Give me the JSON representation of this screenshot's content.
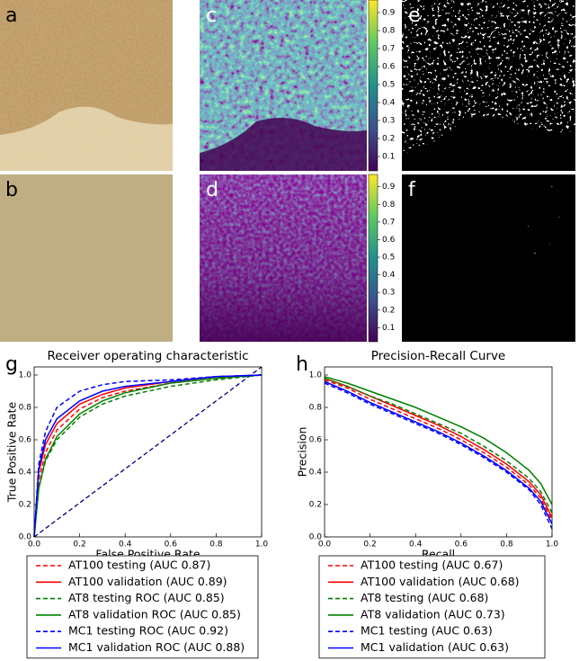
{
  "panel_labels": [
    "a",
    "b",
    "c",
    "d",
    "e",
    "f"
  ],
  "colorbars": [
    {
      "lim": [
        0.02,
        0.97
      ],
      "ticks": [
        0.1,
        0.2,
        0.3,
        0.4,
        0.5,
        0.6,
        0.7,
        0.8,
        0.9
      ]
    },
    {
      "lim": [
        0.02,
        0.97
      ],
      "ticks": [
        0.1,
        0.2,
        0.3,
        0.4,
        0.5,
        0.6,
        0.7,
        0.8,
        0.9
      ]
    }
  ],
  "chart_data": [
    {
      "type": "line",
      "panel_label": "g",
      "title": "Receiver operating characteristic",
      "xlabel": "False Positive Rate",
      "ylabel": "True Positive Rate",
      "xlim": [
        0,
        1
      ],
      "ylim": [
        0,
        1.05
      ],
      "xticks": [
        {
          "value": 0,
          "label": "0.0"
        },
        0.2,
        0.4,
        0.6,
        0.8,
        {
          "value": 1,
          "label": "1.0"
        }
      ],
      "yticks": [
        {
          "value": 0,
          "label": "0.0"
        },
        0.2,
        0.4,
        0.6,
        0.8,
        {
          "value": 1,
          "label": "1.0"
        }
      ],
      "x": [
        0,
        0.02,
        0.05,
        0.1,
        0.2,
        0.3,
        0.4,
        0.6,
        0.8,
        1
      ],
      "series": [
        {
          "name": "AT100 testing (AUC 0.87)",
          "color": "#ff0000",
          "dash": true,
          "values": [
            0,
            0.35,
            0.52,
            0.66,
            0.79,
            0.86,
            0.9,
            0.95,
            0.98,
            1
          ]
        },
        {
          "name": "AT100 validation (AUC 0.89)",
          "color": "#ff0000",
          "dash": false,
          "values": [
            0,
            0.4,
            0.57,
            0.7,
            0.82,
            0.88,
            0.92,
            0.96,
            0.99,
            1
          ]
        },
        {
          "name": "AT8 testing ROC (AUC 0.85)",
          "color": "#008000",
          "dash": true,
          "values": [
            0,
            0.3,
            0.47,
            0.6,
            0.74,
            0.82,
            0.87,
            0.93,
            0.97,
            1
          ]
        },
        {
          "name": "AT8 validation ROC (AUC 0.85)",
          "color": "#008000",
          "dash": false,
          "values": [
            0,
            0.3,
            0.48,
            0.62,
            0.76,
            0.84,
            0.89,
            0.95,
            0.98,
            1
          ]
        },
        {
          "name": "MC1 testing ROC (AUC 0.92)",
          "color": "#0000ff",
          "dash": true,
          "values": [
            0,
            0.45,
            0.65,
            0.8,
            0.9,
            0.94,
            0.96,
            0.97,
            0.99,
            1
          ]
        },
        {
          "name": "MC1 validation ROC (AUC 0.88)",
          "color": "#0000ff",
          "dash": false,
          "values": [
            0,
            0.42,
            0.6,
            0.73,
            0.84,
            0.9,
            0.93,
            0.96,
            0.99,
            1
          ]
        }
      ]
    },
    {
      "type": "line",
      "panel_label": "h",
      "title": "Precision-Recall Curve",
      "xlabel": "Recall",
      "ylabel": "Precision",
      "xlim": [
        0,
        1
      ],
      "ylim": [
        0,
        1.05
      ],
      "xticks": [
        {
          "value": 0,
          "label": "0.0"
        },
        0.2,
        0.4,
        0.6,
        0.8,
        {
          "value": 1,
          "label": "1.0"
        }
      ],
      "yticks": [
        {
          "value": 0,
          "label": "0.0"
        },
        0.2,
        0.4,
        0.6,
        0.8,
        {
          "value": 1,
          "label": "1.0"
        }
      ],
      "x": [
        0,
        0.1,
        0.2,
        0.3,
        0.4,
        0.5,
        0.6,
        0.7,
        0.8,
        0.9,
        0.95,
        1
      ],
      "series": [
        {
          "name": "AT100 testing (AUC 0.67)",
          "color": "#ff0000",
          "dash": true,
          "values": [
            0.97,
            0.92,
            0.85,
            0.79,
            0.73,
            0.67,
            0.6,
            0.52,
            0.43,
            0.32,
            0.24,
            0.1
          ]
        },
        {
          "name": "AT100 validation (AUC 0.68)",
          "color": "#ff0000",
          "dash": false,
          "values": [
            0.98,
            0.93,
            0.87,
            0.81,
            0.75,
            0.69,
            0.62,
            0.54,
            0.45,
            0.34,
            0.26,
            0.12
          ]
        },
        {
          "name": "AT8 testing (AUC 0.68)",
          "color": "#008000",
          "dash": true,
          "values": [
            0.98,
            0.93,
            0.87,
            0.82,
            0.76,
            0.7,
            0.64,
            0.56,
            0.47,
            0.36,
            0.28,
            0.15
          ]
        },
        {
          "name": "AT8 validation (AUC 0.73)",
          "color": "#008000",
          "dash": false,
          "values": [
            0.99,
            0.95,
            0.9,
            0.85,
            0.8,
            0.74,
            0.68,
            0.61,
            0.52,
            0.41,
            0.33,
            0.2
          ]
        },
        {
          "name": "MC1 testing (AUC 0.63)",
          "color": "#0000ff",
          "dash": true,
          "values": [
            0.95,
            0.89,
            0.82,
            0.76,
            0.7,
            0.64,
            0.57,
            0.49,
            0.4,
            0.29,
            0.2,
            0.05
          ]
        },
        {
          "name": "MC1 validation (AUC 0.63)",
          "color": "#0000ff",
          "dash": false,
          "values": [
            0.96,
            0.9,
            0.83,
            0.77,
            0.71,
            0.65,
            0.58,
            0.5,
            0.41,
            0.3,
            0.22,
            0.08
          ]
        }
      ]
    }
  ]
}
